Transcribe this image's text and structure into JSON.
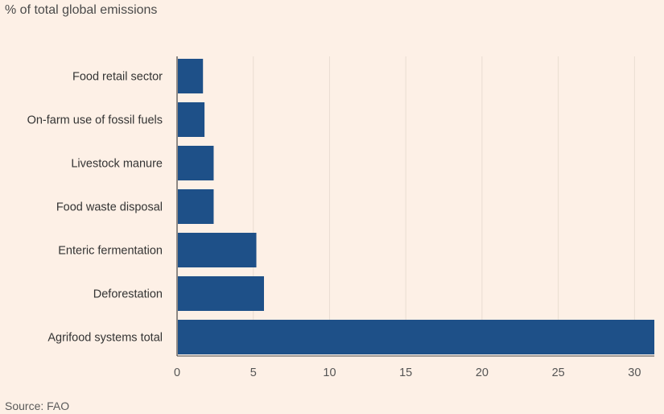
{
  "subtitle": "% of total global emissions",
  "source": "Source: FAO",
  "colors": {
    "background": "#fdf0e6",
    "bar": "#1e5088",
    "grid": "#e9ddd2",
    "axis": "#444444"
  },
  "chart_data": {
    "type": "bar",
    "orientation": "horizontal",
    "title": "",
    "ylabel": "% of total global emissions",
    "xlabel": "",
    "categories": [
      "Food retail sector",
      "On-farm use of fossil fuels",
      "Livestock manure",
      "Food waste disposal",
      "Enteric fermentation",
      "Deforestation",
      "Agrifood systems total"
    ],
    "values": [
      1.7,
      1.8,
      2.4,
      2.4,
      5.2,
      5.7,
      31.3
    ],
    "xlim": [
      0,
      31.3
    ],
    "ticks": [
      "0",
      "5",
      "10",
      "15",
      "20",
      "25",
      "30"
    ],
    "grid": true
  }
}
